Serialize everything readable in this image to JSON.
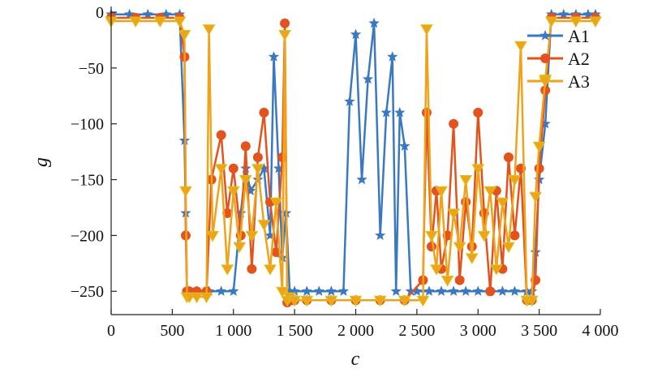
{
  "chart_data": {
    "type": "line",
    "title": "",
    "xlabel": "c",
    "ylabel": "g",
    "xlim": [
      0,
      4000
    ],
    "ylim": [
      -260,
      0
    ],
    "x_ticks": [
      0,
      500,
      1000,
      1500,
      2000,
      2500,
      3000,
      3500,
      4000
    ],
    "x_tick_labels": [
      "0",
      "500",
      "1 000",
      "1 500",
      "2 000",
      "2 500",
      "3 000",
      "3 500",
      "4 000"
    ],
    "y_ticks": [
      0,
      -50,
      -100,
      -150,
      -200,
      -250
    ],
    "y_tick_labels": [
      "0",
      "−50",
      "−100",
      "−150",
      "−200",
      "−250"
    ],
    "grid": false,
    "legend_position": "top-right",
    "series": [
      {
        "name": "A1",
        "color": "#3a78c2",
        "marker": "star",
        "x": [
          0,
          150,
          300,
          450,
          560,
          600,
          610,
          620,
          640,
          700,
          800,
          900,
          1000,
          1060,
          1100,
          1140,
          1200,
          1250,
          1300,
          1330,
          1370,
          1400,
          1430,
          1460,
          1500,
          1600,
          1700,
          1800,
          1900,
          1950,
          2000,
          2050,
          2100,
          2150,
          2200,
          2250,
          2300,
          2330,
          2360,
          2400,
          2450,
          2500,
          2600,
          2700,
          2800,
          2900,
          3000,
          3100,
          3200,
          3300,
          3400,
          3440,
          3470,
          3500,
          3550,
          3600,
          3700,
          3800,
          3900,
          3960
        ],
        "y": [
          -2,
          -2,
          -2,
          -2,
          -2,
          -115,
          -180,
          -250,
          -250,
          -250,
          -250,
          -250,
          -250,
          -180,
          -140,
          -160,
          -150,
          -140,
          -200,
          -40,
          -140,
          -220,
          -180,
          -250,
          -250,
          -250,
          -250,
          -250,
          -250,
          -80,
          -20,
          -150,
          -60,
          -10,
          -200,
          -90,
          -40,
          -250,
          -90,
          -120,
          -250,
          -250,
          -250,
          -250,
          -250,
          -250,
          -250,
          -250,
          -250,
          -250,
          -250,
          -250,
          -215,
          -150,
          -100,
          -2,
          -2,
          -2,
          -2,
          -2
        ]
      },
      {
        "name": "A2",
        "color": "#e2531e",
        "marker": "circle",
        "x": [
          0,
          200,
          400,
          560,
          600,
          610,
          620,
          640,
          700,
          780,
          820,
          900,
          950,
          1000,
          1060,
          1100,
          1150,
          1200,
          1250,
          1300,
          1350,
          1400,
          1420,
          1440,
          1460,
          1480,
          1500,
          1600,
          1800,
          2000,
          2200,
          2400,
          2550,
          2580,
          2620,
          2660,
          2700,
          2750,
          2800,
          2850,
          2900,
          2950,
          3000,
          3050,
          3100,
          3150,
          3200,
          3250,
          3300,
          3350,
          3400,
          3440,
          3470,
          3500,
          3550,
          3600,
          3800,
          3960
        ],
        "y": [
          -5,
          -5,
          -5,
          -5,
          -40,
          -200,
          -250,
          -250,
          -250,
          -250,
          -150,
          -110,
          -180,
          -140,
          -200,
          -120,
          -230,
          -130,
          -90,
          -170,
          -215,
          -130,
          -10,
          -260,
          -258,
          -258,
          -258,
          -258,
          -258,
          -258,
          -258,
          -258,
          -240,
          -90,
          -210,
          -160,
          -230,
          -200,
          -100,
          -240,
          -170,
          -210,
          -90,
          -180,
          -250,
          -160,
          -230,
          -130,
          -200,
          -140,
          -258,
          -258,
          -240,
          -140,
          -70,
          -5,
          -5,
          -5
        ]
      },
      {
        "name": "A3",
        "color": "#f0a21a",
        "marker": "triangle-down",
        "x": [
          0,
          200,
          400,
          560,
          600,
          610,
          620,
          640,
          700,
          780,
          800,
          830,
          900,
          950,
          1000,
          1050,
          1100,
          1150,
          1200,
          1250,
          1300,
          1350,
          1400,
          1420,
          1440,
          1460,
          1500,
          1600,
          1800,
          2000,
          2200,
          2400,
          2550,
          2580,
          2620,
          2660,
          2700,
          2750,
          2800,
          2850,
          2900,
          2950,
          3000,
          3050,
          3100,
          3150,
          3200,
          3250,
          3300,
          3350,
          3400,
          3440,
          3470,
          3500,
          3550,
          3600,
          3800,
          3960
        ],
        "y": [
          -8,
          -8,
          -8,
          -8,
          -20,
          -160,
          -255,
          -255,
          -255,
          -255,
          -15,
          -200,
          -140,
          -230,
          -160,
          -210,
          -150,
          -200,
          -140,
          -190,
          -230,
          -170,
          -250,
          -20,
          -258,
          -255,
          -258,
          -258,
          -258,
          -258,
          -258,
          -258,
          -258,
          -15,
          -200,
          -230,
          -160,
          -240,
          -180,
          -210,
          -150,
          -220,
          -140,
          -200,
          -160,
          -230,
          -170,
          -210,
          -150,
          -30,
          -258,
          -258,
          -165,
          -120,
          -60,
          -8,
          -8,
          -8
        ]
      }
    ]
  }
}
